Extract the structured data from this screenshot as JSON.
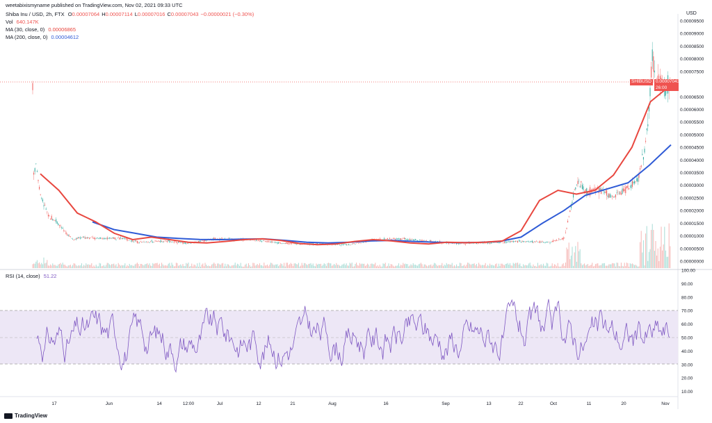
{
  "header": {
    "credit": "weetabixismyname published on TradingView.com, Nov 02, 2021 09:33 UTC"
  },
  "legend": {
    "title": "Shiba Inu / USD, 2h, FTX",
    "ohlc": [
      {
        "k": "O",
        "v": "0.00007064"
      },
      {
        "k": "H",
        "v": "0.00007114"
      },
      {
        "k": "L",
        "v": "0.00007016"
      },
      {
        "k": "C",
        "v": "0.00007043"
      },
      {
        "k": "",
        "v": "−0.00000021 (−0.30%)"
      }
    ],
    "vol_label": "Vol",
    "vol_value": "640.147K",
    "ma30_label": "MA (30, close, 0)",
    "ma30_value": "0.00006865",
    "ma200_label": "MA (200, close, 0)",
    "ma200_value": "0.00004612"
  },
  "rsi": {
    "label": "RSI (14, close)",
    "value": "51.22"
  },
  "axis": {
    "currency": "USD",
    "price_ticks": [
      "0.00009500",
      "0.00009000",
      "0.00008500",
      "0.00008000",
      "0.00007500",
      "0.00006500",
      "0.00006000",
      "0.00005500",
      "0.00005000",
      "0.00004500",
      "0.00004000",
      "0.00003500",
      "0.00003000",
      "0.00002500",
      "0.00002000",
      "0.00001500",
      "0.00001000",
      "0.00000500",
      "0.00000000"
    ],
    "rsi_ticks": [
      "100.00",
      "90.00",
      "80.00",
      "70.00",
      "60.00",
      "50.00",
      "40.00",
      "30.00",
      "20.00",
      "10.00"
    ],
    "time_ticks": [
      "17",
      "Jun",
      "14",
      "12:00",
      "Jul",
      "12",
      "21",
      "Aug",
      "16",
      "Sep",
      "13",
      "22",
      "Oct",
      "11",
      "20",
      "Nov"
    ]
  },
  "price_tag": {
    "symbol": "SHIBUSD",
    "price": "0.00007043",
    "countdown": "26:00"
  },
  "colors": {
    "up": "#26a69a",
    "down": "#ef5350",
    "ma30": "#e8473f",
    "ma200": "#2f5bd6",
    "rsi": "#7e57c2",
    "rsi_band": "#ede7f6"
  },
  "branding": {
    "name": "TradingView"
  },
  "chart_data": {
    "type": "line",
    "title": "Shiba Inu / USD, 2h, FTX",
    "price_range": [
      0,
      9.5e-05
    ],
    "rsi_range": [
      0,
      100
    ],
    "time_labels": [
      "17",
      "Jun",
      "14",
      "12:00",
      "Jul",
      "12",
      "21",
      "Aug",
      "16",
      "Sep",
      "13",
      "22",
      "Oct",
      "11",
      "20",
      "Nov"
    ],
    "series": [
      {
        "name": "MA (30, close, 0)",
        "values": [
          3.45e-05,
          2.8e-05,
          1.9e-05,
          1.55e-05,
          1.1e-05,
          8.5e-06,
          9.5e-06,
          8.5e-06,
          7.5e-06,
          7.2e-06,
          7.8e-06,
          8.5e-06,
          8.8e-06,
          8.2e-06,
          7e-06,
          6.5e-06,
          6.8e-06,
          7.8e-06,
          8.5e-06,
          8e-06,
          7.2e-06,
          6.8e-06,
          7.5e-06,
          7.3e-06,
          7.5e-06,
          8e-06,
          1.2e-05,
          2.4e-05,
          2.8e-05,
          2.65e-05,
          2.8e-05,
          3.4e-05,
          4.5e-05,
          6.3e-05,
          6.9e-05
        ]
      },
      {
        "name": "MA (200, close, 0)",
        "values": [
          1.55e-05,
          1.25e-05,
          1.1e-05,
          9.5e-06,
          9e-06,
          8.6e-06,
          8.5e-06,
          8.7e-06,
          8.8e-06,
          8.2e-06,
          7.5e-06,
          7.2e-06,
          7.5e-06,
          8e-06,
          8.2e-06,
          7.8e-06,
          7.5e-06,
          7.3e-06,
          7.4e-06,
          7.8e-06,
          9.5e-06,
          1.5e-05,
          2e-05,
          2.6e-05,
          2.85e-05,
          3.1e-05,
          3.8e-05,
          4.6e-05
        ]
      },
      {
        "name": "RSI (14, close)",
        "value": 51.22,
        "bands": [
          30,
          70
        ],
        "mid": 50
      }
    ],
    "last_price": 7.043e-05
  }
}
